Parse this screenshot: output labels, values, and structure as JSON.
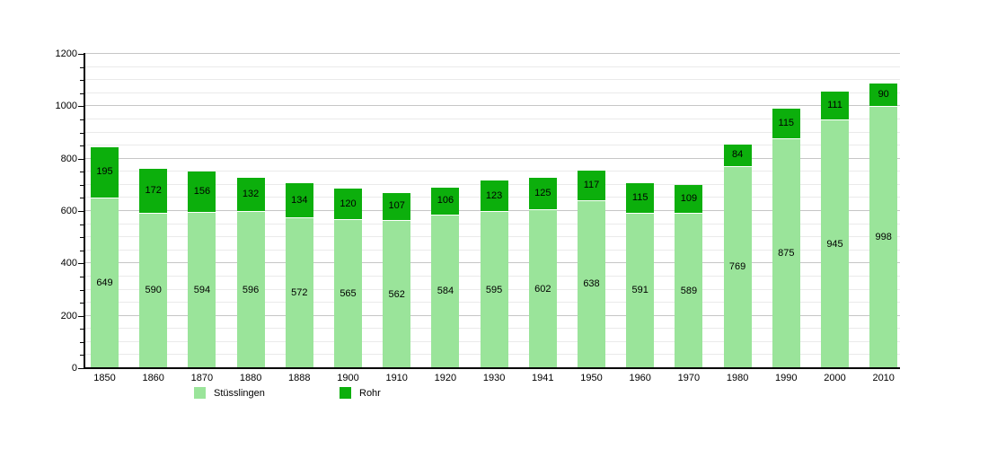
{
  "chart_data": {
    "type": "bar",
    "stacked": true,
    "title": "",
    "categories": [
      "1850",
      "1860",
      "1870",
      "1880",
      "1888",
      "1900",
      "1910",
      "1920",
      "1930",
      "1941",
      "1950",
      "1960",
      "1970",
      "1980",
      "1990",
      "2000",
      "2010"
    ],
    "series": [
      {
        "name": "Stüsslingen",
        "color": "#9AE49A",
        "values": [
          649,
          590,
          594,
          596,
          572,
          565,
          562,
          584,
          595,
          602,
          638,
          591,
          589,
          769,
          875,
          945,
          998
        ]
      },
      {
        "name": "Rohr",
        "color": "#0CAF0C",
        "values": [
          195,
          172,
          156,
          132,
          134,
          120,
          107,
          106,
          123,
          125,
          117,
          115,
          109,
          84,
          115,
          111,
          90
        ]
      }
    ],
    "ylim": [
      0,
      1200
    ],
    "y_major_step": 200,
    "y_minor_step": 50,
    "y_tick_labels": [
      "0",
      "200",
      "400",
      "600",
      "800",
      "1000",
      "1200"
    ],
    "grid": true,
    "legend_position": "bottom",
    "value_labels": "inside-center"
  },
  "colors": {
    "background": "#ffffff",
    "axis": "#000000",
    "grid_minor": "#eaeaea",
    "grid_major": "#c6c6c6",
    "text": "#000000"
  }
}
